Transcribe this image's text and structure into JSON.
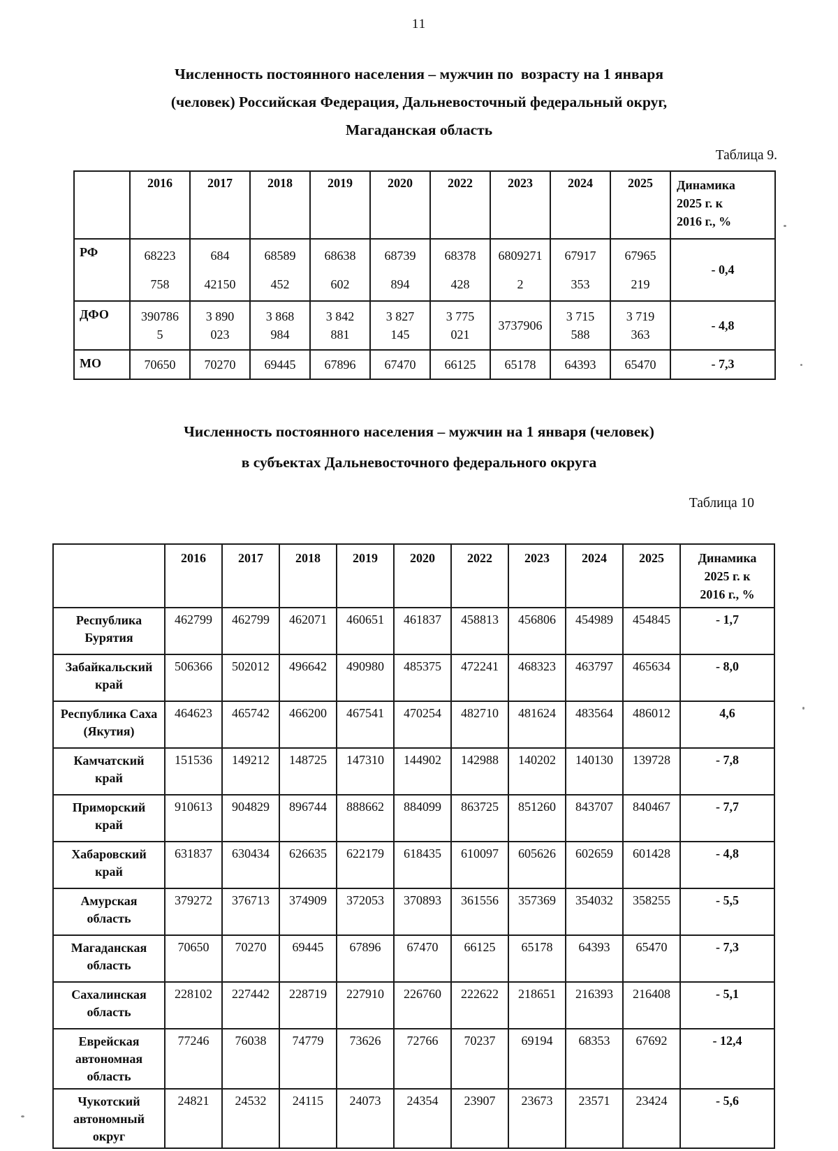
{
  "page": {
    "number": "11"
  },
  "table9": {
    "title": "Численность постоянного населения – мужчин по  возрасту на 1 января\n(человек) Российская Федерация, Дальневосточный федеральный округ,\nМагаданская область",
    "caption": "Таблица 9.",
    "columns": [
      "",
      "2016",
      "2017",
      "2018",
      "2019",
      "2020",
      "2022",
      "2023",
      "2024",
      "2025",
      "Динамика\n2025 г. к\n2016 г., %"
    ],
    "rows": [
      {
        "label": "РФ",
        "values": [
          "68223\n758",
          "684\n42150",
          "68589\n452",
          "68638\n602",
          "68739\n894",
          "68378\n428",
          "6809271\n2",
          "67917\n353",
          "67965\n219"
        ],
        "dynamics": "- 0,4"
      },
      {
        "label": "ДФО",
        "values": [
          "390786\n5",
          "3 890\n023",
          "3 868\n984",
          "3 842\n881",
          "3 827\n145",
          "3 775\n021",
          "3737906",
          "3 715\n588",
          "3 719\n363"
        ],
        "dynamics": "- 4,8"
      },
      {
        "label": "МО",
        "values": [
          "70650",
          "70270",
          "69445",
          "67896",
          "67470",
          "66125",
          "65178",
          "64393",
          "65470"
        ],
        "dynamics": "- 7,3"
      }
    ]
  },
  "table10": {
    "title": "Численность постоянного населения – мужчин на 1 января (человек)\nв субъектах Дальневосточного федерального округа",
    "caption": "Таблица 10",
    "columns": [
      "",
      "2016",
      "2017",
      "2018",
      "2019",
      "2020",
      "2022",
      "2023",
      "2024",
      "2025",
      "Динамика\n2025 г. к\n2016 г., %"
    ],
    "rows": [
      {
        "label": "Республика\nБурятия",
        "values": [
          "462799",
          "462799",
          "462071",
          "460651",
          "461837",
          "458813",
          "456806",
          "454989",
          "454845"
        ],
        "dynamics": "- 1,7"
      },
      {
        "label": "Забайкальский\nкрай",
        "values": [
          "506366",
          "502012",
          "496642",
          "490980",
          "485375",
          "472241",
          "468323",
          "463797",
          "465634"
        ],
        "dynamics": "- 8,0"
      },
      {
        "label": "Республика Саха\n(Якутия)",
        "values": [
          "464623",
          "465742",
          "466200",
          "467541",
          "470254",
          "482710",
          "481624",
          "483564",
          "486012"
        ],
        "dynamics": "4,6"
      },
      {
        "label": "Камчатский\nкрай",
        "values": [
          "151536",
          "149212",
          "148725",
          "147310",
          "144902",
          "142988",
          "140202",
          "140130",
          "139728"
        ],
        "dynamics": "- 7,8"
      },
      {
        "label": "Приморский\nкрай",
        "values": [
          "910613",
          "904829",
          "896744",
          "888662",
          "884099",
          "863725",
          "851260",
          "843707",
          "840467"
        ],
        "dynamics": "- 7,7"
      },
      {
        "label": "Хабаровский\nкрай",
        "values": [
          "631837",
          "630434",
          "626635",
          "622179",
          "618435",
          "610097",
          "605626",
          "602659",
          "601428"
        ],
        "dynamics": "- 4,8"
      },
      {
        "label": "Амурская\nобласть",
        "values": [
          "379272",
          "376713",
          "374909",
          "372053",
          "370893",
          "361556",
          "357369",
          "354032",
          "358255"
        ],
        "dynamics": "- 5,5"
      },
      {
        "label": "Магаданская\nобласть",
        "values": [
          "70650",
          "70270",
          "69445",
          "67896",
          "67470",
          "66125",
          "65178",
          "64393",
          "65470"
        ],
        "dynamics": "- 7,3"
      },
      {
        "label": "Сахалинская\nобласть",
        "values": [
          "228102",
          "227442",
          "228719",
          "227910",
          "226760",
          "222622",
          "218651",
          "216393",
          "216408"
        ],
        "dynamics": "- 5,1"
      },
      {
        "label": "Еврейская\nавтономная\nобласть",
        "values": [
          "77246",
          "76038",
          "74779",
          "73626",
          "72766",
          "70237",
          "69194",
          "68353",
          "67692"
        ],
        "dynamics": "- 12,4"
      },
      {
        "label": "Чукотский\nавтономный\nокруг",
        "values": [
          "24821",
          "24532",
          "24115",
          "24073",
          "24354",
          "23907",
          "23673",
          "23571",
          "23424"
        ],
        "dynamics": "- 5,6"
      }
    ]
  }
}
